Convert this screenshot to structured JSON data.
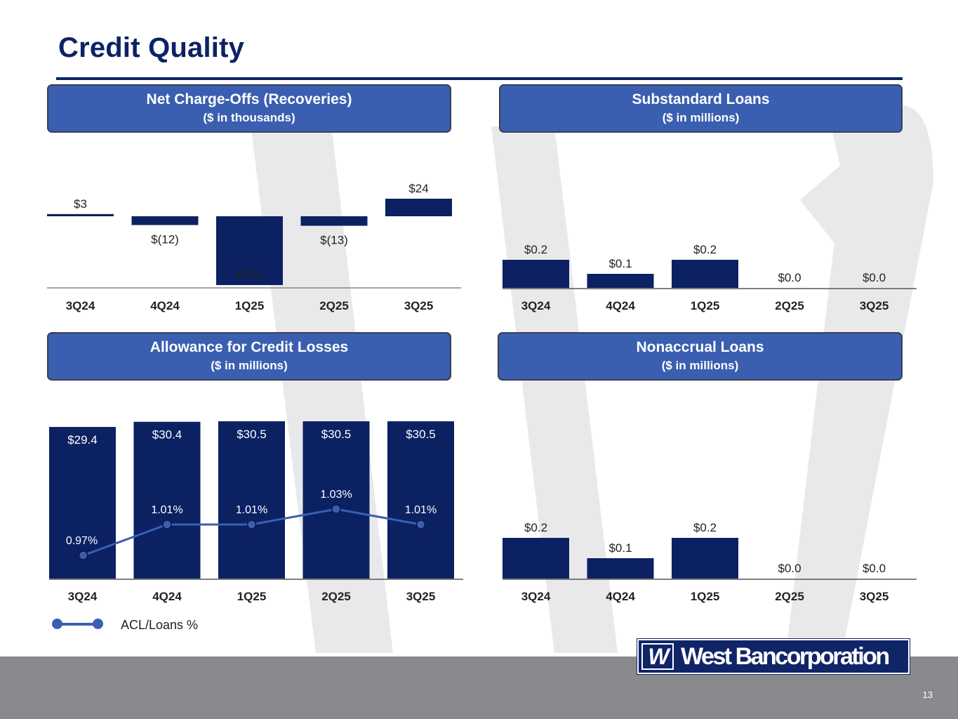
{
  "page": {
    "title": "Credit Quality",
    "page_number": "13",
    "brand_color": "#0d2266",
    "header_color": "#3a5fb0",
    "bar_color": "#0b2162",
    "footer_color": "#8a8a8e"
  },
  "logo": {
    "mark": "W",
    "name": "West Bancorporation"
  },
  "legend": {
    "label": "ACL/Loans %"
  },
  "panels": [
    {
      "id": "net-charge-offs",
      "title": "Net Charge-Offs (Recoveries)",
      "subtitle": "($ in thousands)"
    },
    {
      "id": "substandard-loans",
      "title": "Substandard Loans",
      "subtitle": "($ in millions)"
    },
    {
      "id": "acl",
      "title": "Allowance for Credit Losses",
      "subtitle": "($ in millions)"
    },
    {
      "id": "nonaccrual-loans",
      "title": "Nonaccrual Loans",
      "subtitle": "($ in millions)"
    }
  ],
  "chart_data": [
    {
      "type": "bar",
      "title": "Net Charge-Offs (Recoveries)",
      "subtitle": "($ in thousands)",
      "categories": [
        "3Q24",
        "4Q24",
        "1Q25",
        "2Q25",
        "3Q25"
      ],
      "values": [
        3,
        -12,
        -94,
        -13,
        24
      ],
      "data_labels": [
        "$3",
        "$(12)",
        "$(94)",
        "$(13)",
        "$24"
      ],
      "ylim": [
        -94,
        24
      ],
      "grid": false
    },
    {
      "type": "bar",
      "title": "Substandard Loans",
      "subtitle": "($ in millions)",
      "categories": [
        "3Q24",
        "4Q24",
        "1Q25",
        "2Q25",
        "3Q25"
      ],
      "values": [
        0.2,
        0.1,
        0.2,
        0.0,
        0.0
      ],
      "data_labels": [
        "$0.2",
        "$0.1",
        "$0.2",
        "$0.0",
        "$0.0"
      ],
      "ylim": [
        0,
        0.2
      ],
      "grid": false
    },
    {
      "type": "bar",
      "title": "Allowance for Credit Losses",
      "subtitle": "($ in millions)",
      "categories": [
        "3Q24",
        "4Q24",
        "1Q25",
        "2Q25",
        "3Q25"
      ],
      "values": [
        29.4,
        30.4,
        30.5,
        30.5,
        30.5
      ],
      "data_labels": [
        "$29.4",
        "$30.4",
        "$30.5",
        "$30.5",
        "$30.5"
      ],
      "ylim": [
        0,
        30.5
      ],
      "grid": false,
      "line_series": {
        "name": "ACL/Loans %",
        "values": [
          0.97,
          1.01,
          1.01,
          1.03,
          1.01
        ],
        "data_labels": [
          "0.97%",
          "1.01%",
          "1.01%",
          "1.03%",
          "1.01%"
        ]
      },
      "legend": "bottom-left"
    },
    {
      "type": "bar",
      "title": "Nonaccrual Loans",
      "subtitle": "($ in millions)",
      "categories": [
        "3Q24",
        "4Q24",
        "1Q25",
        "2Q25",
        "3Q25"
      ],
      "values": [
        0.2,
        0.1,
        0.2,
        0.0,
        0.0
      ],
      "data_labels": [
        "$0.2",
        "$0.1",
        "$0.2",
        "$0.0",
        "$0.0"
      ],
      "ylim": [
        0,
        0.2
      ],
      "grid": false
    }
  ]
}
